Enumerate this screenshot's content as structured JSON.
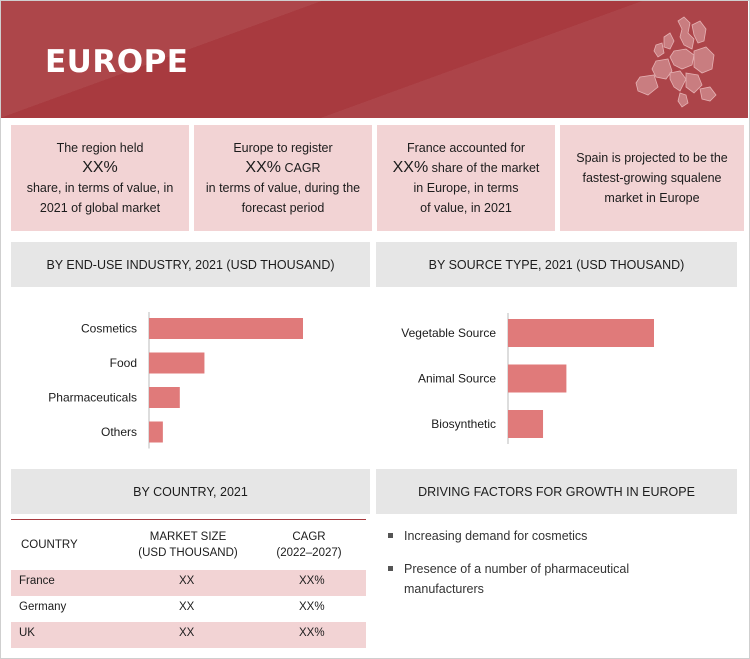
{
  "header": {
    "title": "EUROPE"
  },
  "summary": [
    {
      "line1": "The region held",
      "big": "XX%",
      "big_suffix": "",
      "line2": "share, in terms of value, in",
      "line3": "2021 of global market"
    },
    {
      "line1": "Europe to register",
      "big": "XX%",
      "big_suffix": " CAGR",
      "line2": "in terms of value, during the",
      "line3": "forecast period"
    },
    {
      "line1": "France accounted for",
      "big": "XX%",
      "big_suffix": " share of the market",
      "line2": "in Europe, in terms",
      "line3": "of value, in 2021"
    },
    {
      "line1": "Spain is projected to be the",
      "big": "",
      "big_suffix": "",
      "line2": "fastest-growing squalene",
      "line3": "market in Europe"
    }
  ],
  "sections": {
    "end_use": "BY END-USE INDUSTRY, 2021 (USD THOUSAND)",
    "source": "BY SOURCE TYPE, 2021 (USD THOUSAND)",
    "country": "BY COUNTRY, 2021",
    "drivers": "DRIVING FACTORS FOR GROWTH IN EUROPE"
  },
  "chart_data": [
    {
      "type": "bar",
      "orientation": "horizontal",
      "title": "BY END-USE INDUSTRY, 2021 (USD THOUSAND)",
      "categories": [
        "Cosmetics",
        "Food",
        "Pharmaceuticals",
        "Others"
      ],
      "values": [
        100,
        36,
        20,
        9
      ],
      "xlim": [
        0,
        100
      ],
      "grid": false,
      "bar_color": "#e07a7a"
    },
    {
      "type": "bar",
      "orientation": "horizontal",
      "title": "BY SOURCE TYPE, 2021 (USD THOUSAND)",
      "categories": [
        "Vegetable Source",
        "Animal Source",
        "Biosynthetic"
      ],
      "values": [
        100,
        40,
        24
      ],
      "xlim": [
        0,
        100
      ],
      "grid": false,
      "bar_color": "#e07a7a"
    }
  ],
  "table": {
    "headers": {
      "country": "COUNTRY",
      "size_1": "MARKET SIZE",
      "size_2": "(USD THOUSAND)",
      "cagr_1": "CAGR",
      "cagr_2": "(2022–2027)"
    },
    "rows": [
      {
        "country": "France",
        "size": "XX",
        "cagr": "XX%"
      },
      {
        "country": "Germany",
        "size": "XX",
        "cagr": "XX%"
      },
      {
        "country": "UK",
        "size": "XX",
        "cagr": "XX%"
      }
    ]
  },
  "drivers": [
    "Increasing demand for cosmetics",
    "Presence of a number of pharmaceutical manufacturers"
  ],
  "colors": {
    "header": "#a83a3f",
    "box": "#f2d3d4",
    "section": "#e6e6e6",
    "bar": "#e07a7a"
  },
  "icons": {
    "map": "europe-map-icon",
    "bullet": "square-bullet-icon"
  }
}
